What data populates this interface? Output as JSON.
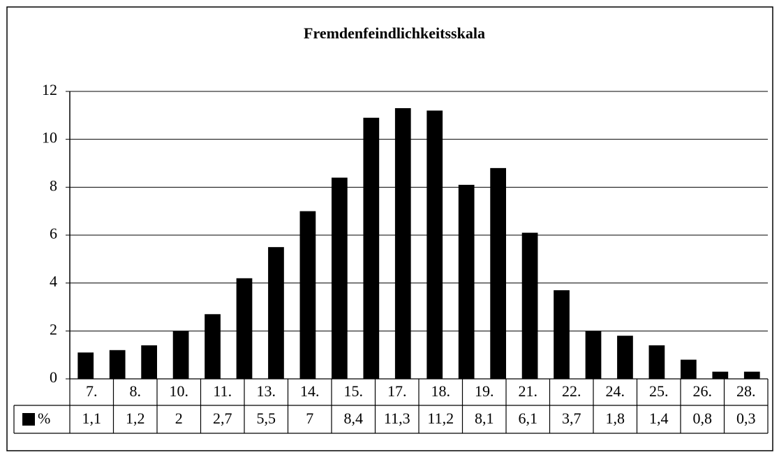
{
  "chart_data": {
    "type": "bar",
    "title": "Fremdenfeindlichkeitsskala",
    "categories": [
      "7.",
      "8.",
      null,
      "10.",
      "11.",
      null,
      "13.",
      "14.",
      "15.",
      null,
      "17.",
      "18.",
      "19.",
      null,
      "21.",
      "22.",
      null,
      "24.",
      "25.",
      "26.",
      null,
      "28."
    ],
    "series": [
      {
        "name": "%",
        "color": "#000000",
        "values": [
          1.1,
          1.2,
          1.4,
          2.0,
          2.7,
          4.2,
          5.5,
          7.0,
          8.4,
          10.9,
          11.3,
          11.2,
          8.1,
          8.8,
          6.1,
          3.7,
          2.0,
          1.8,
          1.4,
          0.8,
          0.3,
          0.3
        ],
        "value_labels": [
          "1,1",
          "1,2",
          null,
          "2",
          "2,7",
          null,
          "5,5",
          "7",
          "8,4",
          null,
          "11,3",
          "11,2",
          "8,1",
          null,
          "6,1",
          "3,7",
          null,
          "1,8",
          "1,4",
          "0,8",
          null,
          "0,3"
        ]
      }
    ],
    "ylim": [
      0,
      12
    ],
    "yticks": [
      0,
      2,
      4,
      6,
      8,
      10,
      12
    ],
    "grid": true,
    "data_table": true
  }
}
